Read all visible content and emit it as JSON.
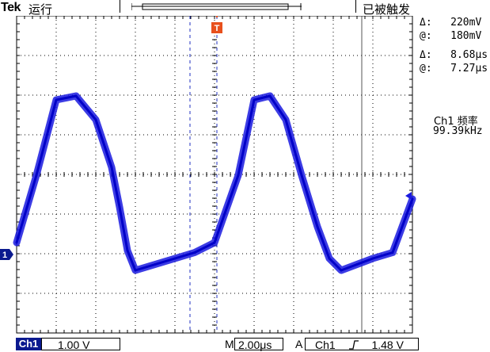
{
  "header": {
    "brand": "Tek",
    "run_state": "运行",
    "trigger_status": "已被触发"
  },
  "measurements": {
    "delta_voltage": "Δ:   220mV",
    "at_voltage": "@:   180mV",
    "delta_time": "Δ:   8.68μs",
    "at_time": "@:   7.27μs",
    "freq_label": "Ch1 频率",
    "freq_value": "99.39kHz"
  },
  "markers": {
    "trigger_marker": "T",
    "channel_marker": "1"
  },
  "footer": {
    "channel": "Ch1",
    "volts_per_div": "1.00 V",
    "time_prefix": "M",
    "time_per_div": "2.00μs",
    "trigger_mode": "A",
    "trigger_source": "Ch1",
    "trigger_slope_icon": "rising-edge-icon",
    "trigger_level": "1.48 V"
  },
  "colors": {
    "trace": "#1a1adf",
    "accent": "#e8501c",
    "channel": "#0b1a8f"
  },
  "chart_data": {
    "type": "line",
    "series": [
      {
        "x": [
          0,
          0.5,
          1.0,
          1.5,
          2.0,
          2.4,
          2.6,
          2.8,
          3.0,
          3.5,
          4.0,
          4.5,
          5.0,
          5.6,
          6.0,
          6.4,
          6.8,
          7.2,
          7.6,
          7.9,
          8.2,
          8.6,
          9.0,
          9.5,
          10.0
        ],
        "y": [
          0.3,
          2.0,
          3.9,
          4.0,
          3.4,
          2.2,
          1.2,
          0.1,
          -0.4,
          -0.25,
          -0.1,
          0.05,
          0.3,
          2.0,
          3.9,
          4.0,
          3.4,
          2.0,
          0.7,
          -0.1,
          -0.4,
          -0.25,
          -0.1,
          0.05,
          1.4
        ]
      }
    ]
  }
}
